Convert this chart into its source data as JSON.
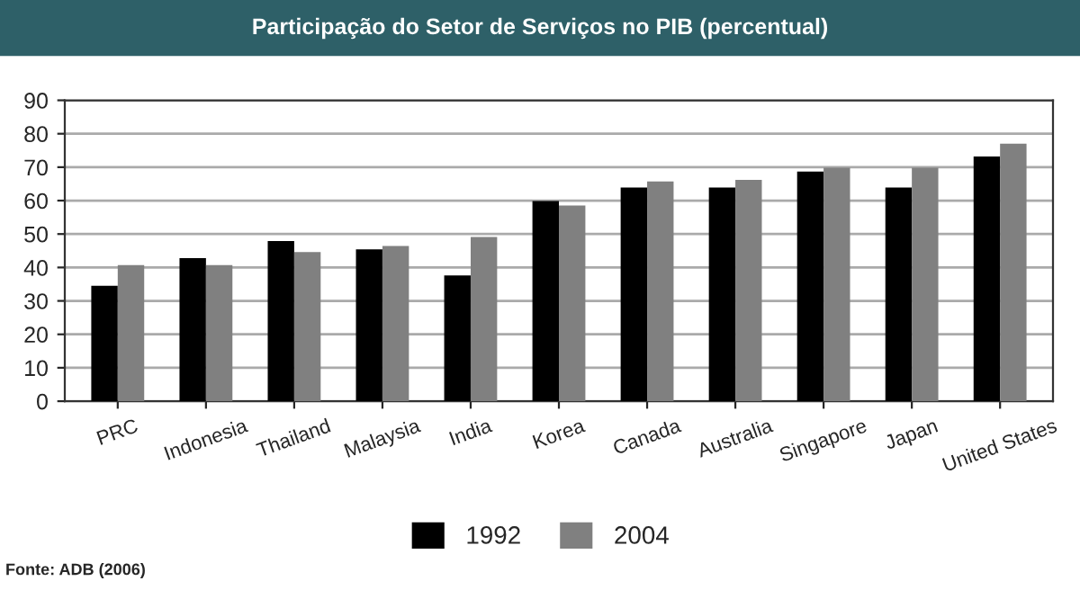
{
  "chart_data": {
    "type": "bar",
    "title": "Participação do Setor de Serviços no PIB (percentual)",
    "categories": [
      "PRC",
      "Indonesia",
      "Thailand",
      "Malaysia",
      "India",
      "Korea",
      "Canada",
      "Australia",
      "Singapore",
      "Japan",
      "United States"
    ],
    "series": [
      {
        "name": "1992",
        "color": "#000000",
        "values": [
          34.5,
          42.8,
          47.9,
          45.4,
          37.6,
          59.9,
          63.9,
          63.9,
          68.7,
          63.9,
          73.2
        ]
      },
      {
        "name": "2004",
        "color": "#808080",
        "values": [
          40.7,
          40.7,
          44.6,
          46.4,
          49.1,
          58.5,
          65.7,
          66.2,
          69.8,
          69.8,
          77.0
        ]
      }
    ],
    "ylim": [
      0,
      90
    ],
    "yticks": [
      0,
      10,
      20,
      30,
      40,
      50,
      60,
      70,
      80,
      90
    ],
    "grid": "y",
    "legend": "bottom",
    "annotations": [
      "Fonte: ADB (2006)"
    ]
  }
}
